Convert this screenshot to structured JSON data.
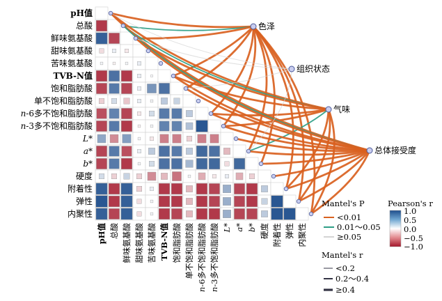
{
  "chart_data": {
    "type": "heatmap",
    "variables": [
      "pH值",
      "总酸",
      "鲜味氨基酸",
      "甜味氨基酸",
      "苦味氨基酸",
      "TVB-N值",
      "饱和脂肪酸",
      "单不饱和脂肪酸",
      "n-6多不饱和脂肪酸",
      "n-3多不饱和脂肪酸",
      "L*",
      "a*",
      "b*",
      "硬度",
      "附着性",
      "弹性",
      "内聚性"
    ],
    "correlation_lower": [
      [],
      [
        -0.85
      ],
      [
        0.9,
        -0.8
      ],
      [
        -0.15,
        0.1,
        -0.1
      ],
      [
        0.05,
        -0.05,
        0.05,
        0.1
      ],
      [
        -0.85,
        0.8,
        -0.85,
        0.1,
        0.02
      ],
      [
        -0.8,
        0.75,
        -0.8,
        0.1,
        0.6,
        0.8
      ],
      [
        -0.2,
        0.2,
        -0.25,
        0.1,
        0.05,
        0.3,
        0.25
      ],
      [
        -0.75,
        0.7,
        -0.8,
        -0.1,
        0.2,
        0.75,
        0.75,
        0.3
      ],
      [
        -0.8,
        0.75,
        -0.85,
        -0.05,
        0.05,
        0.7,
        0.7,
        0.35,
        0.95
      ],
      [
        0.5,
        -0.5,
        0.55,
        0.05,
        -0.1,
        -0.55,
        -0.55,
        -0.2,
        -0.55,
        -0.55
      ],
      [
        -0.8,
        0.75,
        -0.75,
        0.1,
        0.3,
        0.8,
        0.75,
        0.3,
        0.85,
        0.8,
        -0.3
      ],
      [
        -0.8,
        0.75,
        -0.85,
        0.05,
        0.2,
        0.8,
        0.8,
        0.4,
        0.85,
        0.85,
        -0.15,
        0.85
      ],
      [
        0.2,
        -0.2,
        0.25,
        -0.2,
        -0.5,
        -0.3,
        -0.6,
        0.05,
        -0.35,
        -0.1,
        0.1,
        -0.35,
        -0.2
      ],
      [
        0.9,
        -0.85,
        0.9,
        -0.2,
        0.1,
        -0.85,
        -0.85,
        -0.3,
        -0.85,
        -0.8,
        0.45,
        -0.8,
        -0.85,
        0.3
      ],
      [
        0.95,
        -0.85,
        0.9,
        -0.15,
        0.05,
        -0.85,
        -0.85,
        -0.3,
        -0.85,
        -0.8,
        0.45,
        -0.8,
        -0.85,
        0.25,
        0.95
      ],
      [
        0.9,
        -0.8,
        0.9,
        -0.15,
        0.05,
        -0.85,
        -0.8,
        -0.3,
        -0.85,
        -0.85,
        0.45,
        -0.8,
        -0.8,
        0.3,
        0.95,
        0.95
      ]
    ],
    "targets": [
      "色泽",
      "组织状态",
      "气味",
      "总体接受度"
    ],
    "mantel_links": [
      {
        "target": "色泽",
        "from": "pH值",
        "p": "<0.01",
        "r": "≥0.4"
      },
      {
        "target": "色泽",
        "from": "总酸",
        "p": "0.01～0.05",
        "r": "0.2～0.4"
      },
      {
        "target": "色泽",
        "from": "鲜味氨基酸",
        "p": "<0.01",
        "r": "≥0.4"
      },
      {
        "target": "色泽",
        "from": "TVB-N值",
        "p": "<0.01",
        "r": "≥0.4"
      },
      {
        "target": "色泽",
        "from": "饱和脂肪酸",
        "p": "<0.01",
        "r": "≥0.4"
      },
      {
        "target": "色泽",
        "from": "n-6多不饱和脂肪酸",
        "p": "<0.01",
        "r": "≥0.4"
      },
      {
        "target": "色泽",
        "from": "n-3多不饱和脂肪酸",
        "p": "<0.01",
        "r": "≥0.4"
      },
      {
        "target": "色泽",
        "from": "a*",
        "p": "<0.01",
        "r": "≥0.4"
      },
      {
        "target": "色泽",
        "from": "b*",
        "p": "<0.01",
        "r": "≥0.4"
      },
      {
        "target": "色泽",
        "from": "附着性",
        "p": "<0.01",
        "r": "≥0.4"
      },
      {
        "target": "色泽",
        "from": "弹性",
        "p": "<0.01",
        "r": "≥0.4"
      },
      {
        "target": "色泽",
        "from": "内聚性",
        "p": "<0.01",
        "r": "≥0.4"
      },
      {
        "target": "气味",
        "from": "pH值",
        "p": "<0.01",
        "r": "≥0.4"
      },
      {
        "target": "气味",
        "from": "总酸",
        "p": "0.01～0.05",
        "r": "0.2～0.4"
      },
      {
        "target": "气味",
        "from": "鲜味氨基酸",
        "p": "<0.01",
        "r": "≥0.4"
      },
      {
        "target": "气味",
        "from": "TVB-N值",
        "p": "<0.01",
        "r": "≥0.4"
      },
      {
        "target": "气味",
        "from": "n-6多不饱和脂肪酸",
        "p": "<0.01",
        "r": "≥0.4"
      },
      {
        "target": "气味",
        "from": "n-3多不饱和脂肪酸",
        "p": "<0.01",
        "r": "≥0.4"
      },
      {
        "target": "气味",
        "from": "a*",
        "p": "0.01～0.05",
        "r": "0.2～0.4"
      },
      {
        "target": "气味",
        "from": "附着性",
        "p": "<0.01",
        "r": "≥0.4"
      },
      {
        "target": "气味",
        "from": "弹性",
        "p": "<0.01",
        "r": "≥0.4"
      },
      {
        "target": "气味",
        "from": "内聚性",
        "p": "<0.01",
        "r": "≥0.4"
      },
      {
        "target": "总体接受度",
        "from": "pH值",
        "p": "<0.01",
        "r": "≥0.4"
      },
      {
        "target": "总体接受度",
        "from": "总酸",
        "p": "0.01～0.05",
        "r": "0.2～0.4"
      },
      {
        "target": "总体接受度",
        "from": "鲜味氨基酸",
        "p": "<0.01",
        "r": "≥0.4"
      },
      {
        "target": "总体接受度",
        "from": "TVB-N值",
        "p": "<0.01",
        "r": "≥0.4"
      },
      {
        "target": "总体接受度",
        "from": "饱和脂肪酸",
        "p": "<0.01",
        "r": "≥0.4"
      },
      {
        "target": "总体接受度",
        "from": "n-6多不饱和脂肪酸",
        "p": "<0.01",
        "r": "≥0.4"
      },
      {
        "target": "总体接受度",
        "from": "n-3多不饱和脂肪酸",
        "p": "<0.01",
        "r": "≥0.4"
      },
      {
        "target": "总体接受度",
        "from": "L*",
        "p": "<0.01",
        "r": "≥0.4"
      },
      {
        "target": "总体接受度",
        "from": "a*",
        "p": "<0.01",
        "r": "≥0.4"
      },
      {
        "target": "总体接受度",
        "from": "b*",
        "p": "<0.01",
        "r": "≥0.4"
      },
      {
        "target": "总体接受度",
        "from": "硬度",
        "p": "<0.01",
        "r": "≥0.4"
      },
      {
        "target": "总体接受度",
        "from": "附着性",
        "p": "<0.01",
        "r": "≥0.4"
      },
      {
        "target": "总体接受度",
        "from": "弹性",
        "p": "<0.01",
        "r": "≥0.4"
      },
      {
        "target": "总体接受度",
        "from": "内聚性",
        "p": "<0.01",
        "r": "≥0.4"
      },
      {
        "target": "组织状态",
        "from": "pH值",
        "p": "≥0.05",
        "r": "<0.2"
      },
      {
        "target": "组织状态",
        "from": "鲜味氨基酸",
        "p": "≥0.05",
        "r": "<0.2"
      },
      {
        "target": "组织状态",
        "from": "饱和脂肪酸",
        "p": "≥0.05",
        "r": "<0.2"
      },
      {
        "target": "组织状态",
        "from": "a*",
        "p": "≥0.05",
        "r": "<0.2"
      }
    ],
    "legend": {
      "mantel_p_title": "Mantel's P",
      "mantel_p": [
        "<0.01",
        "0.01～0.05",
        "≥0.05"
      ],
      "mantel_r_title": "Mantel's r",
      "mantel_r": [
        "<0.2",
        "0.2～0.4",
        "≥0.4"
      ],
      "pearson_title": "Pearson's r",
      "pearson_ticks": [
        "1.0",
        "0.5",
        "0.0",
        "−0.5",
        "−1.0"
      ],
      "pearson_range": [
        -1,
        1
      ]
    },
    "colors": {
      "positive": "#1f4e8c",
      "neutral": "#ffffff",
      "negative": "#a3162a",
      "p_lt_001": "#d9611f",
      "p_001_005": "#2e9e86",
      "p_ge_005": "#d3d3d3"
    }
  }
}
